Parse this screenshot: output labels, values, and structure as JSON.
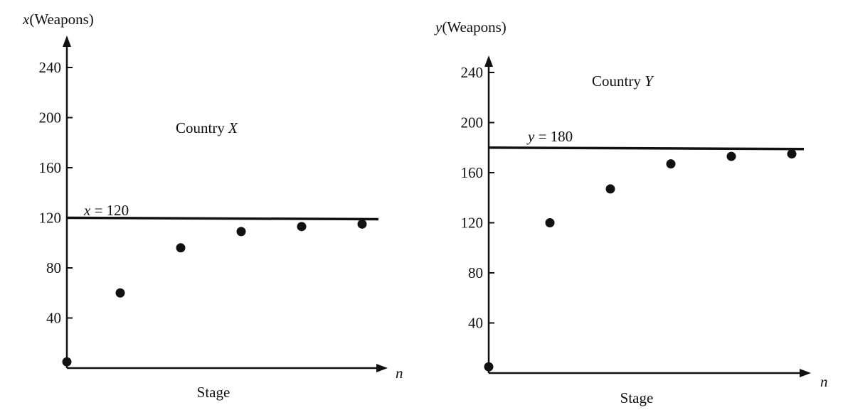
{
  "charts": [
    {
      "id": "x",
      "title_prefix": "Country ",
      "title_var": "X",
      "y_var": "x",
      "ylabel_text": "(Weapons)",
      "xlabel": "Stage",
      "x_var": "n",
      "ref_label_var": "x",
      "ref_label_rest": " = 120"
    },
    {
      "id": "y",
      "title_prefix": "Country ",
      "title_var": "Y",
      "y_var": "y",
      "ylabel_text": "(Weapons)",
      "xlabel": "Stage",
      "x_var": "n",
      "ref_label_var": "y",
      "ref_label_rest": " = 180"
    }
  ],
  "chart_data": [
    {
      "type": "scatter",
      "title": "Country X",
      "xlabel": "Stage",
      "ylabel": "x(Weapons)",
      "x_axis_symbol": "n",
      "ylim": [
        0,
        260
      ],
      "yticks": [
        40,
        80,
        120,
        160,
        200,
        240
      ],
      "x": [
        0,
        1,
        2,
        3,
        4,
        5
      ],
      "y": [
        5,
        60,
        96,
        109,
        113,
        115
      ],
      "reference_line": {
        "value": 120,
        "label": "x = 120"
      },
      "grid": false,
      "color": "#111111"
    },
    {
      "type": "scatter",
      "title": "Country Y",
      "xlabel": "Stage",
      "ylabel": "y(Weapons)",
      "x_axis_symbol": "n",
      "ylim": [
        0,
        260
      ],
      "yticks": [
        40,
        80,
        120,
        160,
        200,
        240
      ],
      "x": [
        0,
        1,
        2,
        3,
        4,
        5
      ],
      "y": [
        5,
        120,
        147,
        167,
        173,
        175
      ],
      "reference_line": {
        "value": 180,
        "label": "y = 180"
      },
      "grid": false,
      "color": "#111111"
    }
  ]
}
